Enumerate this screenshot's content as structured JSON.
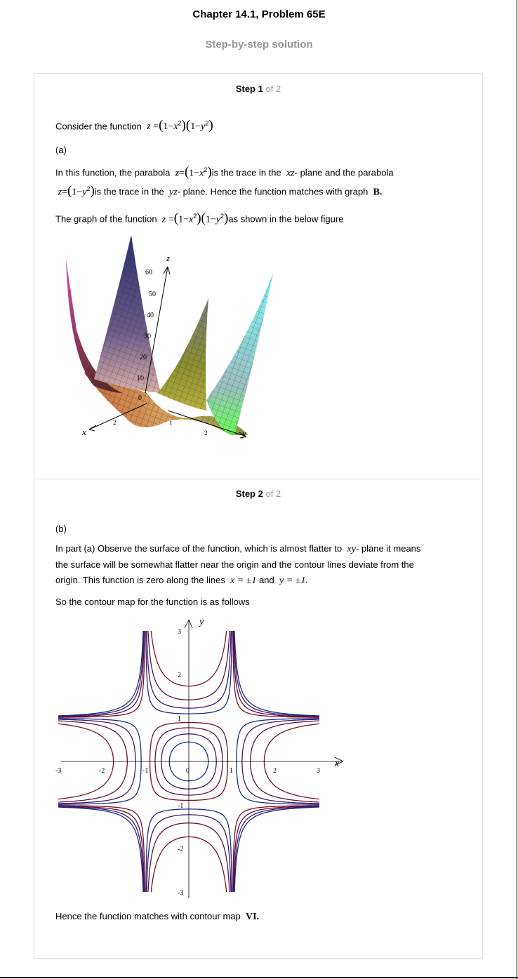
{
  "header": {
    "title": "Chapter 14.1, Problem 65E",
    "subtitle": "Step-by-step solution"
  },
  "step1": {
    "step_label": "Step 1",
    "of_label": "of 2",
    "intro": "Consider the function",
    "part": "(a)",
    "text1": "In this function, the parabola",
    "text2": "is the trace in the",
    "plane_xz": "xz",
    "text3": "- plane and the parabola",
    "text4": "is the trace in the",
    "plane_yz": "yz",
    "text5": "- plane. Hence the function matches with graph",
    "graph_answer": "B.",
    "text6": "The graph of the function",
    "text7": "as shown in the below figure"
  },
  "figure3d": {
    "axis_z": "z",
    "axis_x": "x",
    "axis_y": "y",
    "z_ticks": [
      "60",
      "50",
      "40",
      "30",
      "20",
      "10",
      "0"
    ],
    "y_tick": "1",
    "y_tick2": "2",
    "x_tick": "2"
  },
  "step2": {
    "step_label": "Step 2",
    "of_label": "of 2",
    "part": "(b)",
    "text1": "In part (a) Observe the surface of the function, which is almost flatter to",
    "plane_xy": "xy",
    "text2": "- plane it means",
    "text3": "the surface will be somewhat flatter near the origin and the contour lines deviate from the",
    "text4": "origin. This function is zero along the lines",
    "line1": "x = ±1",
    "and_word": "and",
    "line2": "y = ±1.",
    "text5": "So the contour map for the function is as follows",
    "conclusion": "Hence the function matches with contour map",
    "map_answer": "VI."
  },
  "contour": {
    "axis_x": "x",
    "axis_y": "y",
    "x_ticks": [
      "-3",
      "-2",
      "-1",
      "0",
      "1",
      "2",
      "3"
    ],
    "y_ticks": [
      "3",
      "2",
      "1",
      "-1",
      "-2",
      "-3"
    ],
    "levels": [
      -2,
      -1,
      -0.5,
      -0.2,
      0.2,
      0.4,
      0.6,
      0.8
    ],
    "colors": [
      "#7a1023",
      "#5a1040",
      "#3a1a6a",
      "#1a2a8a"
    ]
  }
}
